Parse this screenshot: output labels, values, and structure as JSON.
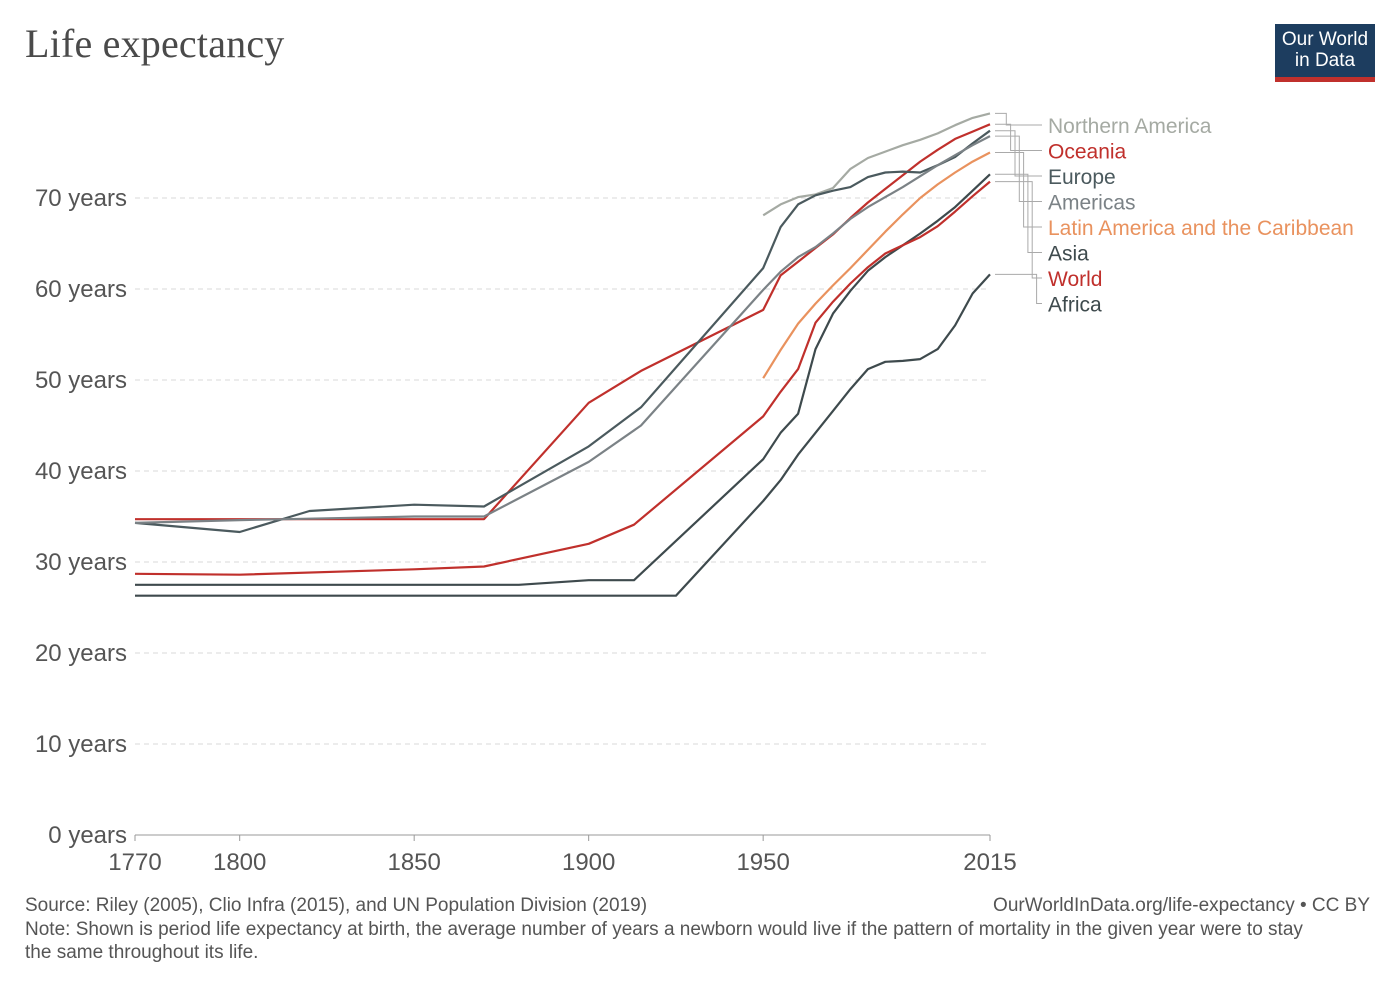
{
  "header": {
    "title": "Life expectancy",
    "logo_line1": "Our World",
    "logo_line2": "in Data"
  },
  "footer": {
    "source": "Source: Riley (2005), Clio Infra (2015), and UN Population Division (2019)",
    "credit": "OurWorldInData.org/life-expectancy • CC BY",
    "note": "Note: Shown is period life expectancy at birth, the average number of years a newborn would live if the pattern of mortality in the given year were to stay the same throughout its life."
  },
  "chart_data": {
    "type": "line",
    "title": "Life expectancy",
    "xlabel": "",
    "ylabel": "",
    "xlim": [
      1770,
      2015
    ],
    "ylim": [
      0,
      80
    ],
    "grid": true,
    "legend_position": "right",
    "x_ticks": [
      1770,
      1800,
      1850,
      1900,
      1950,
      2015
    ],
    "y_ticks": [
      {
        "value": 0,
        "label": "0 years"
      },
      {
        "value": 10,
        "label": "10 years"
      },
      {
        "value": 20,
        "label": "20 years"
      },
      {
        "value": 30,
        "label": "30 years"
      },
      {
        "value": 40,
        "label": "40 years"
      },
      {
        "value": 50,
        "label": "50 years"
      },
      {
        "value": 60,
        "label": "60 years"
      },
      {
        "value": 70,
        "label": "70 years"
      }
    ],
    "series": [
      {
        "name": "Northern America",
        "color": "#a5aaa3",
        "points": [
          [
            1950,
            68.1
          ],
          [
            1955,
            69.3
          ],
          [
            1960,
            70.1
          ],
          [
            1965,
            70.4
          ],
          [
            1970,
            71.1
          ],
          [
            1975,
            73.2
          ],
          [
            1980,
            74.4
          ],
          [
            1985,
            75.1
          ],
          [
            1990,
            75.8
          ],
          [
            1995,
            76.4
          ],
          [
            2000,
            77.1
          ],
          [
            2005,
            78.0
          ],
          [
            2010,
            78.8
          ],
          [
            2015,
            79.3
          ]
        ]
      },
      {
        "name": "Oceania",
        "color": "#c0302c",
        "points": [
          [
            1770,
            34.7
          ],
          [
            1870,
            34.7
          ],
          [
            1900,
            47.5
          ],
          [
            1915,
            51.0
          ],
          [
            1950,
            57.7
          ],
          [
            1955,
            61.5
          ],
          [
            1960,
            63.0
          ],
          [
            1965,
            64.5
          ],
          [
            1970,
            66.0
          ],
          [
            1975,
            67.8
          ],
          [
            1980,
            69.5
          ],
          [
            1985,
            71.0
          ],
          [
            1990,
            72.5
          ],
          [
            1995,
            74.0
          ],
          [
            2000,
            75.3
          ],
          [
            2005,
            76.5
          ],
          [
            2010,
            77.3
          ],
          [
            2015,
            78.1
          ]
        ]
      },
      {
        "name": "Europe",
        "color": "#4b5a5e",
        "points": [
          [
            1770,
            34.3
          ],
          [
            1800,
            33.3
          ],
          [
            1820,
            35.6
          ],
          [
            1850,
            36.3
          ],
          [
            1870,
            36.1
          ],
          [
            1900,
            42.7
          ],
          [
            1915,
            47.0
          ],
          [
            1950,
            62.3
          ],
          [
            1955,
            66.8
          ],
          [
            1960,
            69.3
          ],
          [
            1965,
            70.3
          ],
          [
            1970,
            70.8
          ],
          [
            1975,
            71.2
          ],
          [
            1980,
            72.3
          ],
          [
            1985,
            72.8
          ],
          [
            1990,
            72.9
          ],
          [
            1995,
            72.8
          ],
          [
            2000,
            73.6
          ],
          [
            2005,
            74.5
          ],
          [
            2010,
            76.0
          ],
          [
            2015,
            77.4
          ]
        ]
      },
      {
        "name": "Americas",
        "color": "#7b8286",
        "points": [
          [
            1770,
            34.3
          ],
          [
            1800,
            34.6
          ],
          [
            1850,
            35.0
          ],
          [
            1870,
            35.0
          ],
          [
            1900,
            41.0
          ],
          [
            1915,
            45.0
          ],
          [
            1950,
            59.9
          ],
          [
            1955,
            61.9
          ],
          [
            1960,
            63.5
          ],
          [
            1965,
            64.6
          ],
          [
            1970,
            66.1
          ],
          [
            1975,
            67.7
          ],
          [
            1980,
            69.0
          ],
          [
            1985,
            70.1
          ],
          [
            1990,
            71.2
          ],
          [
            1995,
            72.4
          ],
          [
            2000,
            73.6
          ],
          [
            2005,
            74.7
          ],
          [
            2010,
            75.8
          ],
          [
            2015,
            76.8
          ]
        ]
      },
      {
        "name": "Latin America and the Caribbean",
        "color": "#e9925e",
        "points": [
          [
            1950,
            50.2
          ],
          [
            1955,
            53.3
          ],
          [
            1960,
            56.2
          ],
          [
            1965,
            58.4
          ],
          [
            1970,
            60.4
          ],
          [
            1975,
            62.3
          ],
          [
            1980,
            64.3
          ],
          [
            1985,
            66.3
          ],
          [
            1990,
            68.2
          ],
          [
            1995,
            70.0
          ],
          [
            2000,
            71.5
          ],
          [
            2005,
            72.8
          ],
          [
            2010,
            74.0
          ],
          [
            2015,
            75.0
          ]
        ]
      },
      {
        "name": "Asia",
        "color": "#3e4a4d",
        "points": [
          [
            1770,
            27.5
          ],
          [
            1880,
            27.5
          ],
          [
            1900,
            28.0
          ],
          [
            1913,
            28.0
          ],
          [
            1950,
            41.3
          ],
          [
            1955,
            44.2
          ],
          [
            1960,
            46.3
          ],
          [
            1965,
            53.4
          ],
          [
            1970,
            57.3
          ],
          [
            1975,
            59.8
          ],
          [
            1980,
            62.0
          ],
          [
            1985,
            63.5
          ],
          [
            1990,
            64.8
          ],
          [
            1995,
            66.1
          ],
          [
            2000,
            67.5
          ],
          [
            2005,
            69.0
          ],
          [
            2010,
            70.8
          ],
          [
            2015,
            72.6
          ]
        ]
      },
      {
        "name": "World",
        "color": "#c0302c",
        "points": [
          [
            1770,
            28.7
          ],
          [
            1800,
            28.6
          ],
          [
            1850,
            29.2
          ],
          [
            1870,
            29.5
          ],
          [
            1900,
            32.0
          ],
          [
            1913,
            34.1
          ],
          [
            1950,
            46.0
          ],
          [
            1955,
            48.7
          ],
          [
            1960,
            51.2
          ],
          [
            1965,
            56.3
          ],
          [
            1970,
            58.6
          ],
          [
            1975,
            60.6
          ],
          [
            1980,
            62.4
          ],
          [
            1985,
            63.9
          ],
          [
            1990,
            64.8
          ],
          [
            1995,
            65.7
          ],
          [
            2000,
            66.9
          ],
          [
            2005,
            68.5
          ],
          [
            2010,
            70.2
          ],
          [
            2015,
            71.8
          ]
        ]
      },
      {
        "name": "Africa",
        "color": "#3e4a4d",
        "points": [
          [
            1770,
            26.3
          ],
          [
            1925,
            26.3
          ],
          [
            1950,
            36.7
          ],
          [
            1955,
            39.0
          ],
          [
            1960,
            41.8
          ],
          [
            1965,
            44.2
          ],
          [
            1970,
            46.6
          ],
          [
            1975,
            49.0
          ],
          [
            1980,
            51.2
          ],
          [
            1985,
            52.0
          ],
          [
            1990,
            52.1
          ],
          [
            1995,
            52.3
          ],
          [
            2000,
            53.4
          ],
          [
            2005,
            56.0
          ],
          [
            2010,
            59.5
          ],
          [
            2015,
            61.6
          ]
        ]
      }
    ]
  }
}
